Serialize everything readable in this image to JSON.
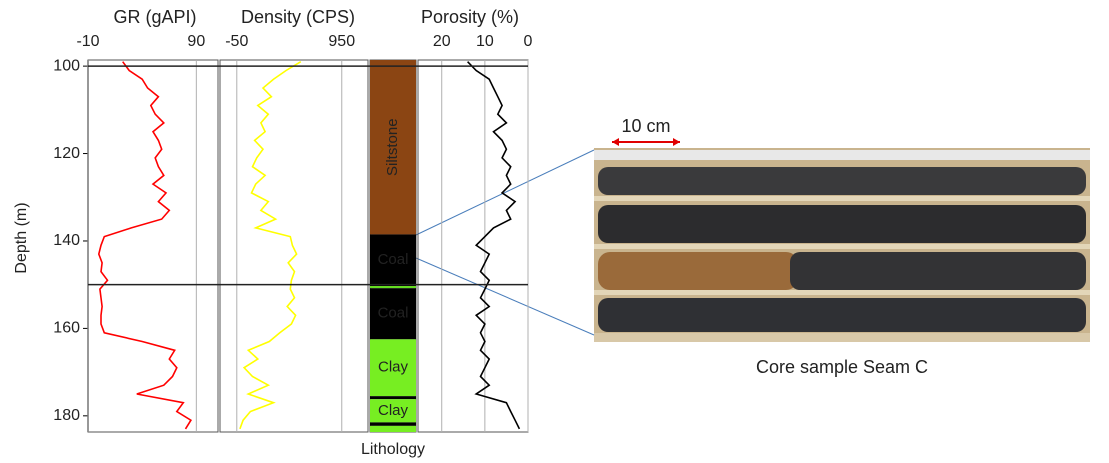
{
  "chart_data": {
    "type": "well-log",
    "ylabel": "Depth (m)",
    "ylim": [
      98.6,
      183.7
    ],
    "yticks": [
      100,
      120,
      140,
      160,
      180
    ],
    "zone_lines": [
      100,
      150
    ],
    "depth": [
      99,
      101,
      103,
      105,
      107,
      109,
      111,
      113,
      115,
      117,
      119,
      121,
      123,
      125,
      127,
      129,
      131,
      133,
      135,
      137,
      139,
      141,
      143,
      145,
      147,
      149,
      151,
      153,
      155,
      157,
      159,
      161,
      163,
      165,
      167,
      169,
      171,
      173,
      175,
      177,
      179,
      181,
      183
    ],
    "tracks": [
      {
        "kind": "curve",
        "title": "GR (gAPI)",
        "xlim": [
          -10,
          110
        ],
        "xticks": [
          -10,
          90
        ],
        "color": "#ff0000",
        "tick_color": "#e00000",
        "values": [
          22,
          28,
          40,
          45,
          55,
          48,
          52,
          60,
          50,
          55,
          58,
          52,
          55,
          60,
          50,
          62,
          55,
          65,
          58,
          30,
          5,
          2,
          0,
          3,
          2,
          8,
          1,
          2,
          3,
          2,
          2,
          5,
          40,
          70,
          65,
          72,
          68,
          60,
          35,
          78,
          72,
          85,
          80
        ]
      },
      {
        "kind": "curve",
        "title": "Density (CPS)",
        "xlim": [
          -210,
          1200
        ],
        "xticks": [
          -50,
          950
        ],
        "color": "#ffff00",
        "tick_color": "#1f6fb4",
        "values": [
          560,
          420,
          300,
          200,
          280,
          150,
          250,
          180,
          220,
          120,
          200,
          140,
          100,
          220,
          130,
          90,
          250,
          180,
          320,
          130,
          460,
          480,
          520,
          440,
          500,
          470,
          460,
          500,
          430,
          510,
          470,
          360,
          260,
          60,
          150,
          20,
          100,
          250,
          60,
          300,
          80,
          10,
          -20
        ]
      },
      {
        "kind": "lithology",
        "title": "Lithology",
        "intervals": [
          {
            "top": 98.6,
            "base": 138.5,
            "label": "Siltstone",
            "color": "#8b4513",
            "label_color": "#ffffff"
          },
          {
            "top": 138.5,
            "base": 150.3,
            "label": "Coal",
            "color": "#000000",
            "label_color": "#ffffff"
          },
          {
            "top": 150.3,
            "base": 150.8,
            "label": null,
            "color": "#66dd22",
            "label_color": "#ffffff"
          },
          {
            "top": 150.8,
            "base": 162.5,
            "label": "Coal",
            "color": "#000000",
            "label_color": "#ffffff"
          },
          {
            "top": 162.5,
            "base": 175.5,
            "label": "Clay",
            "color": "#77ee22",
            "label_color": "#333333"
          },
          {
            "top": 175.5,
            "base": 176.2,
            "label": null,
            "color": "#000000",
            "label_color": "#ffffff"
          },
          {
            "top": 176.2,
            "base": 181.5,
            "label": "Clay",
            "color": "#77ee22",
            "label_color": "#333333"
          },
          {
            "top": 181.5,
            "base": 182.3,
            "label": null,
            "color": "#000000",
            "label_color": "#ffffff"
          },
          {
            "top": 182.3,
            "base": 183.7,
            "label": null,
            "color": "#77ee22",
            "label_color": "#333333"
          }
        ]
      },
      {
        "kind": "curve",
        "title": "Porosity (%)",
        "xlim": [
          25.5,
          0
        ],
        "xticks": [
          20,
          10,
          0
        ],
        "color": "#000000",
        "tick_color": "#222222",
        "values": [
          14,
          12,
          9,
          8,
          7,
          6,
          7,
          5,
          8,
          6,
          5,
          6,
          4,
          5,
          4,
          6,
          3,
          5,
          4,
          8,
          10,
          12,
          9,
          10,
          11,
          9,
          10,
          11,
          9,
          12,
          10,
          11,
          10,
          11,
          9,
          10,
          11,
          9,
          12,
          5,
          4,
          3,
          2
        ]
      }
    ],
    "photo_scale": "10 cm",
    "photo_caption": "Core sample Seam C"
  }
}
